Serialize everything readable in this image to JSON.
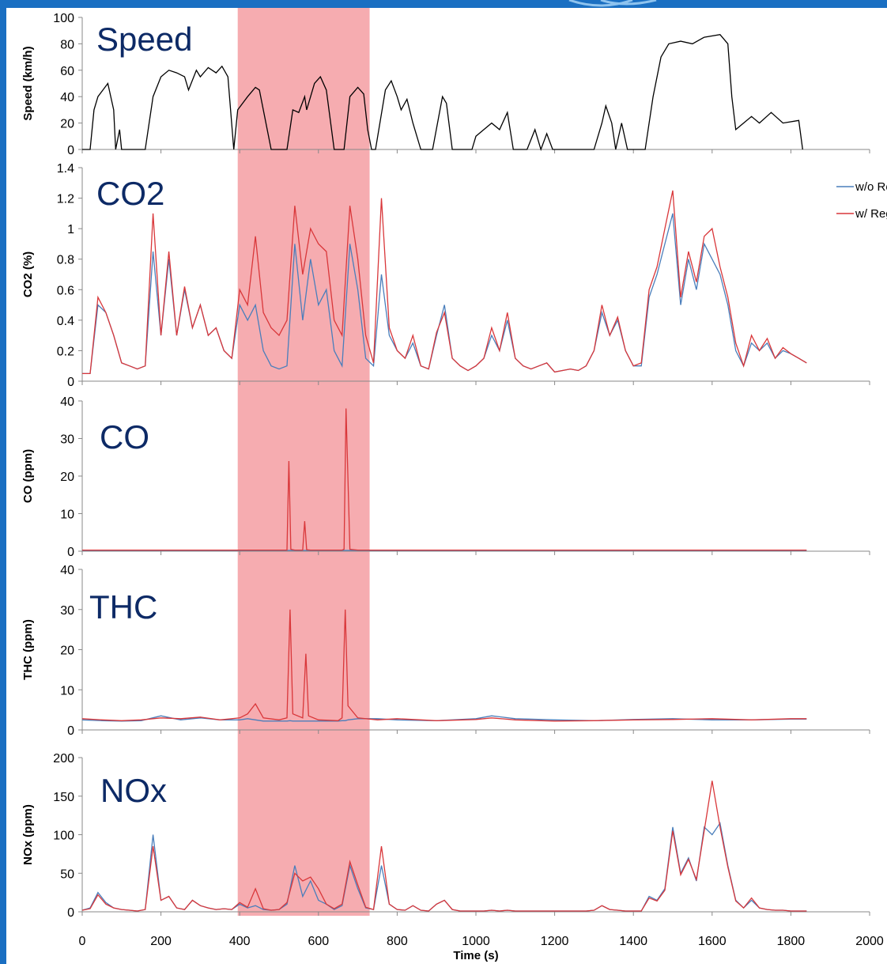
{
  "highlight_x": [
    395,
    730
  ],
  "highlight_color": "#ee5a62",
  "chart_data": [
    {
      "type": "line",
      "title": "Speed",
      "y_label": "Speed (km/h)",
      "xlim": [
        0,
        2000
      ],
      "xticks": [
        0,
        200,
        400,
        600,
        800,
        1000,
        1200,
        1400,
        1600,
        1800,
        2000
      ],
      "ylim": [
        0,
        100
      ],
      "yticks": [
        0,
        20,
        40,
        60,
        80,
        100
      ],
      "x": [
        0,
        20,
        30,
        40,
        65,
        80,
        85,
        95,
        100,
        160,
        180,
        200,
        220,
        240,
        260,
        270,
        290,
        300,
        320,
        340,
        355,
        370,
        385,
        395,
        420,
        440,
        450,
        480,
        520,
        535,
        550,
        565,
        570,
        590,
        605,
        620,
        640,
        665,
        680,
        700,
        715,
        725,
        735,
        745,
        770,
        785,
        800,
        810,
        825,
        840,
        860,
        890,
        915,
        925,
        940,
        990,
        1000,
        1020,
        1040,
        1060,
        1080,
        1095,
        1130,
        1150,
        1165,
        1180,
        1195,
        1300,
        1320,
        1330,
        1345,
        1355,
        1370,
        1385,
        1430,
        1450,
        1470,
        1490,
        1520,
        1550,
        1580,
        1620,
        1640,
        1650,
        1660,
        1680,
        1700,
        1720,
        1750,
        1780,
        1820,
        1830
      ],
      "series": [
        {
          "color": "#000000",
          "values": [
            0,
            0,
            30,
            40,
            50,
            30,
            0,
            15,
            0,
            0,
            40,
            55,
            60,
            58,
            55,
            45,
            60,
            55,
            62,
            58,
            63,
            55,
            0,
            30,
            40,
            47,
            45,
            0,
            0,
            30,
            28,
            40,
            30,
            50,
            55,
            45,
            0,
            0,
            40,
            47,
            42,
            15,
            0,
            0,
            45,
            52,
            40,
            30,
            38,
            20,
            0,
            0,
            40,
            35,
            0,
            0,
            10,
            15,
            20,
            15,
            28,
            0,
            0,
            15,
            0,
            12,
            0,
            0,
            20,
            33,
            20,
            0,
            20,
            0,
            0,
            40,
            70,
            80,
            82,
            80,
            85,
            87,
            80,
            40,
            15,
            20,
            25,
            20,
            28,
            20,
            22,
            0
          ]
        }
      ]
    },
    {
      "type": "line",
      "title": "CO2",
      "y_label": "CO2 (%)",
      "legend": "upper right",
      "xlim": [
        0,
        2000
      ],
      "xticks": [
        0,
        200,
        400,
        600,
        800,
        1000,
        1200,
        1400,
        1600,
        1800,
        2000
      ],
      "ylim": [
        0,
        1.4
      ],
      "yticks": [
        0,
        0.2,
        0.4,
        0.6,
        0.8,
        1,
        1.2,
        1.4
      ],
      "x": [
        0,
        20,
        40,
        60,
        80,
        100,
        120,
        140,
        160,
        180,
        200,
        220,
        240,
        260,
        280,
        300,
        320,
        340,
        360,
        380,
        400,
        420,
        440,
        460,
        480,
        500,
        520,
        540,
        560,
        580,
        600,
        620,
        640,
        660,
        680,
        700,
        720,
        740,
        760,
        780,
        800,
        820,
        840,
        860,
        880,
        900,
        920,
        940,
        960,
        980,
        1000,
        1020,
        1040,
        1060,
        1080,
        1100,
        1120,
        1140,
        1160,
        1180,
        1200,
        1220,
        1240,
        1260,
        1280,
        1300,
        1320,
        1340,
        1360,
        1380,
        1400,
        1420,
        1440,
        1460,
        1480,
        1500,
        1520,
        1540,
        1560,
        1580,
        1600,
        1620,
        1640,
        1660,
        1680,
        1700,
        1720,
        1740,
        1760,
        1780,
        1800,
        1820,
        1840
      ],
      "series": [
        {
          "name": "w/o Regeneration",
          "color": "#4a7ebb",
          "values": [
            0.05,
            0.05,
            0.5,
            0.45,
            0.3,
            0.12,
            0.1,
            0.08,
            0.1,
            0.85,
            0.3,
            0.8,
            0.3,
            0.6,
            0.35,
            0.5,
            0.3,
            0.35,
            0.2,
            0.15,
            0.5,
            0.4,
            0.5,
            0.2,
            0.1,
            0.08,
            0.1,
            0.9,
            0.4,
            0.8,
            0.5,
            0.6,
            0.2,
            0.1,
            0.9,
            0.6,
            0.15,
            0.1,
            0.7,
            0.3,
            0.2,
            0.15,
            0.25,
            0.1,
            0.08,
            0.3,
            0.5,
            0.15,
            0.1,
            0.07,
            0.1,
            0.15,
            0.3,
            0.2,
            0.4,
            0.15,
            0.1,
            0.08,
            0.1,
            0.12,
            0.06,
            0.07,
            0.08,
            0.07,
            0.1,
            0.2,
            0.45,
            0.3,
            0.4,
            0.2,
            0.1,
            0.1,
            0.55,
            0.7,
            0.9,
            1.1,
            0.5,
            0.8,
            0.6,
            0.9,
            0.8,
            0.7,
            0.5,
            0.2,
            0.1,
            0.25,
            0.2,
            0.25,
            0.15,
            0.2,
            0.18,
            0.15,
            0.12
          ]
        },
        {
          "name": "w/ Regeneration",
          "color": "#d9373a",
          "values": [
            0.05,
            0.05,
            0.55,
            0.45,
            0.3,
            0.12,
            0.1,
            0.08,
            0.1,
            1.1,
            0.3,
            0.85,
            0.3,
            0.62,
            0.35,
            0.5,
            0.3,
            0.35,
            0.2,
            0.15,
            0.6,
            0.5,
            0.95,
            0.45,
            0.35,
            0.3,
            0.4,
            1.15,
            0.7,
            1.0,
            0.9,
            0.85,
            0.4,
            0.3,
            1.15,
            0.8,
            0.3,
            0.12,
            1.2,
            0.35,
            0.2,
            0.15,
            0.3,
            0.1,
            0.08,
            0.32,
            0.45,
            0.15,
            0.1,
            0.07,
            0.1,
            0.15,
            0.35,
            0.2,
            0.45,
            0.15,
            0.1,
            0.08,
            0.1,
            0.12,
            0.06,
            0.07,
            0.08,
            0.07,
            0.1,
            0.2,
            0.5,
            0.3,
            0.42,
            0.2,
            0.1,
            0.12,
            0.6,
            0.75,
            1.0,
            1.25,
            0.55,
            0.85,
            0.65,
            0.95,
            1.0,
            0.75,
            0.55,
            0.25,
            0.1,
            0.3,
            0.2,
            0.28,
            0.15,
            0.22,
            0.18,
            0.15,
            0.12
          ]
        }
      ]
    },
    {
      "type": "line",
      "title": "CO",
      "y_label": "CO (ppm)",
      "xlim": [
        0,
        2000
      ],
      "xticks": [
        0,
        200,
        400,
        600,
        800,
        1000,
        1200,
        1400,
        1600,
        1800,
        2000
      ],
      "ylim": [
        0,
        40
      ],
      "yticks": [
        0,
        10,
        20,
        30,
        40
      ],
      "x": [
        0,
        100,
        200,
        300,
        400,
        500,
        520,
        525,
        530,
        540,
        560,
        565,
        570,
        580,
        660,
        665,
        670,
        680,
        700,
        800,
        1000,
        1200,
        1400,
        1600,
        1840
      ],
      "series": [
        {
          "color": "#4a7ebb",
          "values": [
            0.2,
            0.2,
            0.2,
            0.2,
            0.2,
            0.2,
            0.2,
            0.2,
            0.2,
            0.2,
            0.2,
            0.2,
            0.2,
            0.2,
            0.2,
            0.2,
            0.2,
            0.2,
            0.2,
            0.2,
            0.2,
            0.2,
            0.2,
            0.2,
            0.2
          ]
        },
        {
          "color": "#d9373a",
          "values": [
            0.3,
            0.3,
            0.3,
            0.3,
            0.3,
            0.3,
            0.3,
            24,
            0.5,
            0.3,
            0.3,
            8,
            0.4,
            0.3,
            0.3,
            0.5,
            38,
            0.5,
            0.3,
            0.3,
            0.3,
            0.3,
            0.3,
            0.3,
            0.3
          ]
        }
      ]
    },
    {
      "type": "line",
      "title": "THC",
      "y_label": "THC (ppm)",
      "xlim": [
        0,
        2000
      ],
      "xticks": [
        0,
        200,
        400,
        600,
        800,
        1000,
        1200,
        1400,
        1600,
        1800,
        2000
      ],
      "ylim": [
        0,
        40
      ],
      "yticks": [
        0,
        10,
        20,
        30,
        40
      ],
      "x": [
        0,
        50,
        100,
        150,
        200,
        250,
        300,
        350,
        400,
        420,
        440,
        460,
        500,
        520,
        528,
        535,
        560,
        568,
        575,
        600,
        650,
        660,
        668,
        675,
        700,
        750,
        800,
        900,
        1000,
        1040,
        1100,
        1200,
        1300,
        1400,
        1500,
        1600,
        1700,
        1800,
        1840
      ],
      "series": [
        {
          "color": "#4a7ebb",
          "values": [
            2.5,
            2.3,
            2.2,
            2.3,
            3.5,
            2.5,
            3,
            2.5,
            2.5,
            2.8,
            2.5,
            2.2,
            2.2,
            2.2,
            2.3,
            2.2,
            2.2,
            2.2,
            2.2,
            2.2,
            2.2,
            2.3,
            2.3,
            2.5,
            2.8,
            2.8,
            2.5,
            2.3,
            2.8,
            3.5,
            2.8,
            2.5,
            2.3,
            2.6,
            2.8,
            2.5,
            2.5,
            2.7,
            2.7
          ]
        },
        {
          "color": "#d9373a",
          "values": [
            2.8,
            2.5,
            2.3,
            2.5,
            3,
            2.8,
            3.2,
            2.5,
            3,
            4,
            6.5,
            3,
            2.5,
            3,
            30,
            4,
            3,
            19,
            3.5,
            2.5,
            2.3,
            3,
            30,
            6,
            3,
            2.5,
            2.8,
            2.3,
            2.6,
            3,
            2.5,
            2.2,
            2.3,
            2.5,
            2.6,
            2.8,
            2.5,
            2.8,
            2.8
          ]
        }
      ]
    },
    {
      "type": "line",
      "title": "NOx",
      "y_label": "NOx (ppm)",
      "x_label": "Time (s)",
      "xlim": [
        0,
        2000
      ],
      "xticks": [
        0,
        200,
        400,
        600,
        800,
        1000,
        1200,
        1400,
        1600,
        1800,
        2000
      ],
      "ylim": [
        0,
        200
      ],
      "yticks": [
        0,
        50,
        100,
        150,
        200
      ],
      "x": [
        0,
        20,
        40,
        60,
        80,
        100,
        120,
        140,
        160,
        180,
        200,
        220,
        240,
        260,
        280,
        300,
        320,
        340,
        360,
        380,
        400,
        420,
        440,
        460,
        480,
        500,
        520,
        540,
        560,
        580,
        600,
        620,
        640,
        660,
        680,
        700,
        720,
        740,
        760,
        780,
        800,
        820,
        840,
        860,
        880,
        900,
        920,
        940,
        960,
        980,
        1000,
        1020,
        1040,
        1060,
        1080,
        1100,
        1120,
        1140,
        1160,
        1180,
        1200,
        1220,
        1240,
        1260,
        1280,
        1300,
        1320,
        1340,
        1360,
        1380,
        1400,
        1420,
        1440,
        1460,
        1480,
        1500,
        1520,
        1540,
        1560,
        1580,
        1600,
        1620,
        1640,
        1660,
        1680,
        1700,
        1720,
        1740,
        1760,
        1780,
        1800,
        1820,
        1840
      ],
      "series": [
        {
          "color": "#4a7ebb",
          "values": [
            2,
            5,
            25,
            12,
            5,
            3,
            2,
            1,
            3,
            100,
            15,
            20,
            5,
            3,
            15,
            8,
            5,
            3,
            4,
            3,
            10,
            5,
            8,
            3,
            2,
            3,
            10,
            60,
            20,
            40,
            15,
            10,
            3,
            8,
            60,
            30,
            5,
            3,
            60,
            10,
            3,
            2,
            8,
            2,
            1,
            10,
            15,
            3,
            1,
            1,
            1,
            1,
            2,
            1,
            2,
            1,
            1,
            1,
            1,
            1,
            1,
            1,
            1,
            1,
            1,
            2,
            8,
            3,
            2,
            1,
            1,
            1,
            20,
            15,
            30,
            110,
            50,
            70,
            40,
            110,
            100,
            115,
            60,
            15,
            5,
            15,
            5,
            3,
            2,
            2,
            1,
            1,
            1
          ]
        },
        {
          "color": "#d9373a",
          "values": [
            2,
            4,
            22,
            10,
            5,
            3,
            2,
            1,
            3,
            85,
            15,
            20,
            5,
            3,
            15,
            8,
            5,
            3,
            4,
            3,
            12,
            6,
            30,
            4,
            2,
            3,
            12,
            50,
            40,
            45,
            30,
            10,
            4,
            10,
            65,
            35,
            6,
            3,
            85,
            10,
            3,
            2,
            8,
            2,
            1,
            10,
            15,
            3,
            1,
            1,
            1,
            1,
            2,
            1,
            2,
            1,
            1,
            1,
            1,
            1,
            1,
            1,
            1,
            1,
            1,
            2,
            8,
            3,
            2,
            1,
            1,
            1,
            18,
            14,
            28,
            105,
            48,
            68,
            42,
            105,
            170,
            110,
            58,
            14,
            5,
            18,
            5,
            3,
            2,
            2,
            1,
            1,
            1
          ]
        }
      ]
    }
  ]
}
